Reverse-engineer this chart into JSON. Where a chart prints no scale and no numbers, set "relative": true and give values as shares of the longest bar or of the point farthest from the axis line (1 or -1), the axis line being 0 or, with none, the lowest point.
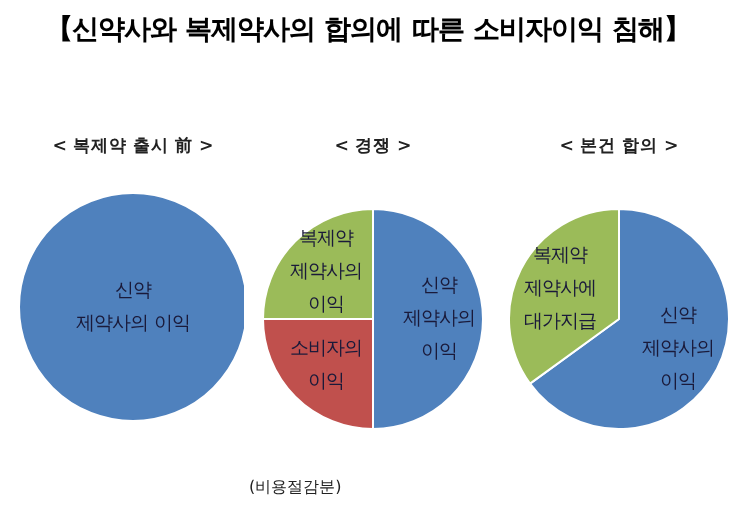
{
  "chart_data": [
    {
      "type": "pie",
      "title": "【신약사와 복제약사의 합의에 따른 소비자이익 침해】",
      "subtitle": "< 복제약 출시 前 >",
      "relative": true,
      "categories": [
        "신약\n제약사의 이익"
      ],
      "values": [
        100
      ],
      "colors": [
        "#4f81bd"
      ]
    },
    {
      "type": "pie",
      "subtitle": "< 경쟁 >",
      "relative": true,
      "categories": [
        "신약\n제약사의\n이익",
        "소비자의\n이익",
        "복제약\n제약사의\n이익"
      ],
      "values": [
        50,
        25,
        25
      ],
      "colors": [
        "#4f81bd",
        "#c0504d",
        "#9bbb59"
      ],
      "annotations": [
        "(비용절감분)"
      ]
    },
    {
      "type": "pie",
      "subtitle": "< 본건 합의 >",
      "relative": true,
      "categories": [
        "신약\n제약사의\n이익",
        "복제약\n제약사에\n대가지급"
      ],
      "values": [
        65,
        35
      ],
      "colors": [
        "#4f81bd",
        "#9bbb59"
      ]
    }
  ]
}
